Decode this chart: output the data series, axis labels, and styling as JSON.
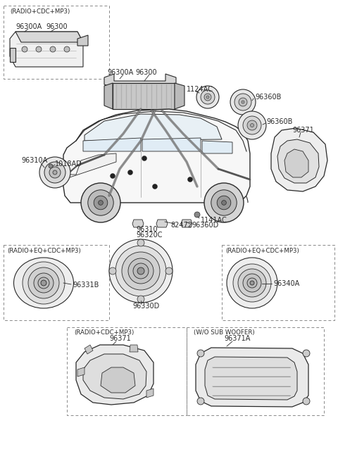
{
  "bg_color": "#ffffff",
  "lc": "#2a2a2a",
  "gray_fill": "#e8e8e8",
  "gray_mid": "#d0d0d0",
  "gray_dark": "#b0b0b0",
  "dashed_color": "#888888",
  "fs": 7.0,
  "fsb": 6.2,
  "labels": {
    "box1": "(RADIO+CDC+MP3)",
    "box2": "(RADIO+EQ+CDC+MP3)",
    "box3": "(RADIO+EQ+CDC+MP3)",
    "box4": "(RADIO+CDC+MP3)",
    "box5": "(W/O SUB WOOFER)",
    "96300A_a": "96300A",
    "96300_a": "96300",
    "96300A_b": "96300A",
    "96300_b": "96300",
    "1124AC": "1124AC",
    "96360B_a": "96360B",
    "96360B_b": "96360B",
    "96371_a": "96371",
    "96310A": "96310A",
    "1018AD": "1018AD",
    "1141AC": "1141AC",
    "96310": "96310",
    "96320C": "96320C",
    "82472": "82472",
    "96360D": "96360D",
    "96331B": "96331B",
    "96330D": "96330D",
    "96340A": "96340A",
    "96371_b": "96371",
    "96371A": "96371A"
  }
}
